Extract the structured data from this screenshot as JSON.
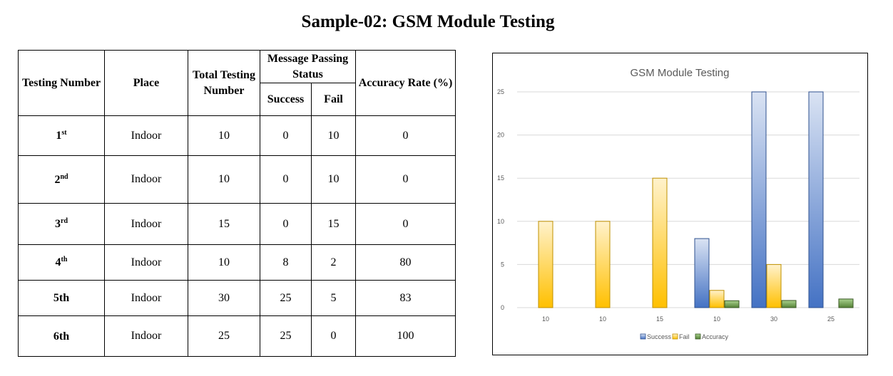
{
  "title": "Sample-02: GSM Module Testing",
  "table": {
    "headers": {
      "testing_number": "Testing Number",
      "place": "Place",
      "total": "Total Testing Number",
      "status_group": "Message Passing Status",
      "success": "Success",
      "fail": "Fail",
      "accuracy": "Accuracy Rate (%)"
    },
    "rows": [
      {
        "num": "1",
        "sup": "st",
        "place": "Indoor",
        "total": "10",
        "success": "0",
        "fail": "10",
        "accuracy": "0"
      },
      {
        "num": "2",
        "sup": "nd",
        "place": "Indoor",
        "total": "10",
        "success": "0",
        "fail": "10",
        "accuracy": "0"
      },
      {
        "num": "3",
        "sup": "rd",
        "place": "Indoor",
        "total": "15",
        "success": "0",
        "fail": "15",
        "accuracy": "0"
      },
      {
        "num": "4",
        "sup": "th",
        "place": "Indoor",
        "total": "10",
        "success": "8",
        "fail": "2",
        "accuracy": "80"
      },
      {
        "num": "5th",
        "sup": "",
        "place": "Indoor",
        "total": "30",
        "success": "25",
        "fail": "5",
        "accuracy": "83"
      },
      {
        "num": "6th",
        "sup": "",
        "place": "Indoor",
        "total": "25",
        "success": "25",
        "fail": "0",
        "accuracy": "100"
      }
    ]
  },
  "chart_data": {
    "type": "bar",
    "title": "GSM Module Testing",
    "categories": [
      "10",
      "10",
      "15",
      "10",
      "30",
      "25"
    ],
    "series": [
      {
        "name": "Success",
        "values": [
          0,
          0,
          0,
          8,
          25,
          25
        ],
        "color": "#4472c4"
      },
      {
        "name": "Fail",
        "values": [
          10,
          10,
          15,
          2,
          5,
          0
        ],
        "color": "#ffc000"
      },
      {
        "name": "Accuracy",
        "values": [
          0,
          0,
          0,
          0.8,
          0.83,
          1
        ],
        "color": "#70ad47"
      }
    ],
    "ylim": [
      0,
      25
    ],
    "yticks": [
      "0",
      "5",
      "10",
      "15",
      "20",
      "25"
    ],
    "grid": true,
    "legend": "bottom"
  }
}
